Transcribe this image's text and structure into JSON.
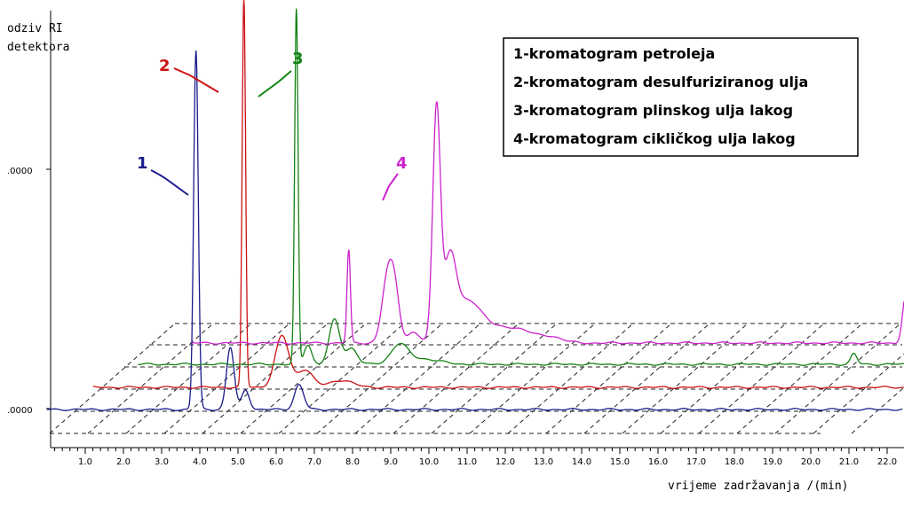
{
  "chart_data": {
    "type": "line",
    "ylabel_lines": [
      "odziv RI",
      "detektora"
    ],
    "xlabel": "vrijeme zadržavanja /(min)",
    "y_tick_labels": [
      ".0000",
      ".0000"
    ],
    "x_tick_labels": [
      "1.0",
      "2.0",
      "3.0",
      "4.0",
      "5.0",
      "6.0",
      "7.0",
      "8.0",
      "9.0",
      "10.0",
      "11.0",
      "12.0",
      "13.0",
      "14.0",
      "15.0",
      "16.0",
      "17.0",
      "18.0",
      "19.0",
      "20.0",
      "21.0",
      "22.0"
    ],
    "xlim": [
      0.1,
      22.4
    ],
    "legend": {
      "position": "top-right",
      "entries": [
        "1-kromatogram petroleja",
        "2-kromatogram desulfuriziranog ulja",
        "3-kromatogram plinskog ulja lakog",
        "4-kromatogram cikličkog ulja lakog"
      ]
    },
    "series": [
      {
        "label": "1",
        "color": "#1a1a8c",
        "x_start": 0.0,
        "x_end": 22.4,
        "peaks": [
          {
            "x": 3.9,
            "height": 405,
            "width": 0.06
          },
          {
            "x": 4.8,
            "height": 70,
            "width": 0.1
          },
          {
            "x": 5.2,
            "height": 22,
            "width": 0.1
          },
          {
            "x": 6.6,
            "height": 28,
            "width": 0.12
          }
        ]
      },
      {
        "label": "2",
        "color": "#cc1111",
        "x_start": 0.6,
        "x_end": 22.4,
        "peaks": [
          {
            "x": 4.55,
            "height": 440,
            "width": 0.045
          },
          {
            "x": 5.55,
            "height": 58,
            "width": 0.18
          },
          {
            "x": 6.15,
            "height": 20,
            "width": 0.2
          },
          {
            "x": 7.1,
            "height": 8,
            "width": 0.3
          }
        ]
      },
      {
        "label": "3",
        "color": "#128212",
        "x_start": 1.1,
        "x_end": 22.4,
        "peaks": [
          {
            "x": 5.25,
            "height": 400,
            "width": 0.045
          },
          {
            "x": 5.55,
            "height": 22,
            "width": 0.1
          },
          {
            "x": 6.25,
            "height": 50,
            "width": 0.14
          },
          {
            "x": 6.7,
            "height": 18,
            "width": 0.15
          },
          {
            "x": 7.95,
            "height": 22,
            "width": 0.22
          },
          {
            "x": 8.6,
            "height": 6,
            "width": 0.4
          },
          {
            "x": 19.85,
            "height": 12,
            "width": 0.08
          }
        ]
      },
      {
        "label": "4",
        "color": "#cc22cc",
        "x_start": 1.8,
        "x_end": 22.4,
        "peaks": [
          {
            "x": 5.9,
            "height": 105,
            "width": 0.045
          },
          {
            "x": 6.9,
            "height": 65,
            "width": 0.14
          },
          {
            "x": 7.1,
            "height": 58,
            "width": 0.13
          },
          {
            "x": 7.6,
            "height": 12,
            "width": 0.15
          },
          {
            "x": 8.2,
            "height": 262,
            "width": 0.1
          },
          {
            "x": 8.55,
            "height": 85,
            "width": 0.16
          },
          {
            "x": 9.0,
            "height": 40,
            "width": 0.35
          },
          {
            "x": 9.6,
            "height": 15,
            "width": 0.5
          },
          {
            "x": 10.4,
            "height": 12,
            "width": 0.35
          },
          {
            "x": 11.2,
            "height": 7,
            "width": 0.3
          },
          {
            "x": 20.5,
            "height": 58,
            "width": 0.09
          }
        ]
      }
    ],
    "annotations": [
      {
        "label": "1",
        "color": "#1a1a8c"
      },
      {
        "label": "2",
        "color": "#cc1111"
      },
      {
        "label": "3",
        "color": "#128212"
      },
      {
        "label": "4",
        "color": "#cc22cc"
      }
    ]
  }
}
